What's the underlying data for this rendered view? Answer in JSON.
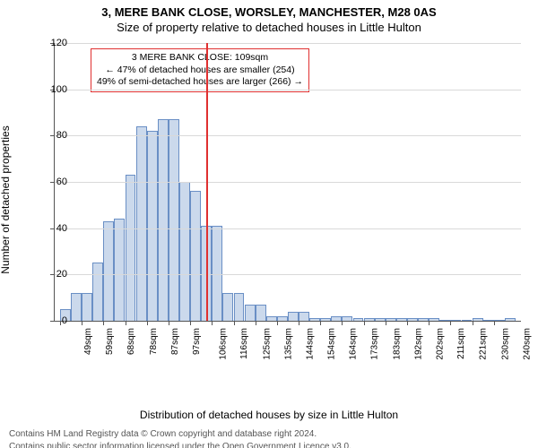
{
  "chart": {
    "type": "histogram",
    "title_line1": "3, MERE BANK CLOSE, WORSLEY, MANCHESTER, M28 0AS",
    "title_line2": "Size of property relative to detached houses in Little Hulton",
    "y_label": "Number of detached properties",
    "x_axis_title": "Distribution of detached houses by size in Little Hulton",
    "background_color": "#ffffff",
    "grid_color": "#d9d9d9",
    "axis_color": "#555555",
    "bar_fill": "#cbd9ec",
    "bar_border": "#6a8fc5",
    "vline_color": "#e03030",
    "annot_border": "#e03030",
    "ylim_max": 120,
    "ytick_step": 20,
    "yticks": [
      0,
      20,
      40,
      60,
      80,
      100,
      120
    ],
    "x_tick_labels": [
      "49sqm",
      "59sqm",
      "68sqm",
      "78sqm",
      "87sqm",
      "97sqm",
      "106sqm",
      "116sqm",
      "125sqm",
      "135sqm",
      "144sqm",
      "154sqm",
      "164sqm",
      "173sqm",
      "183sqm",
      "192sqm",
      "202sqm",
      "211sqm",
      "221sqm",
      "230sqm",
      "240sqm"
    ],
    "bar_values": [
      5,
      12,
      12,
      25,
      43,
      44,
      63,
      84,
      82,
      87,
      87,
      60,
      56,
      41,
      41,
      12,
      12,
      7,
      7,
      2,
      2,
      4,
      4,
      1,
      1,
      2,
      2,
      1,
      1,
      1,
      1,
      1,
      1,
      1,
      1,
      0,
      0,
      0,
      1,
      0,
      0,
      1
    ],
    "vline_at_sqm": 109,
    "x_min_sqm": 45,
    "x_max_sqm": 245,
    "annotation": {
      "line1": "3 MERE BANK CLOSE: 109sqm",
      "line2": "← 47% of detached houses are smaller (254)",
      "line3": "49% of semi-detached houses are larger (266) →"
    }
  },
  "footer": {
    "line1": "Contains HM Land Registry data © Crown copyright and database right 2024.",
    "line2": "Contains public sector information licensed under the Open Government Licence v3.0."
  }
}
